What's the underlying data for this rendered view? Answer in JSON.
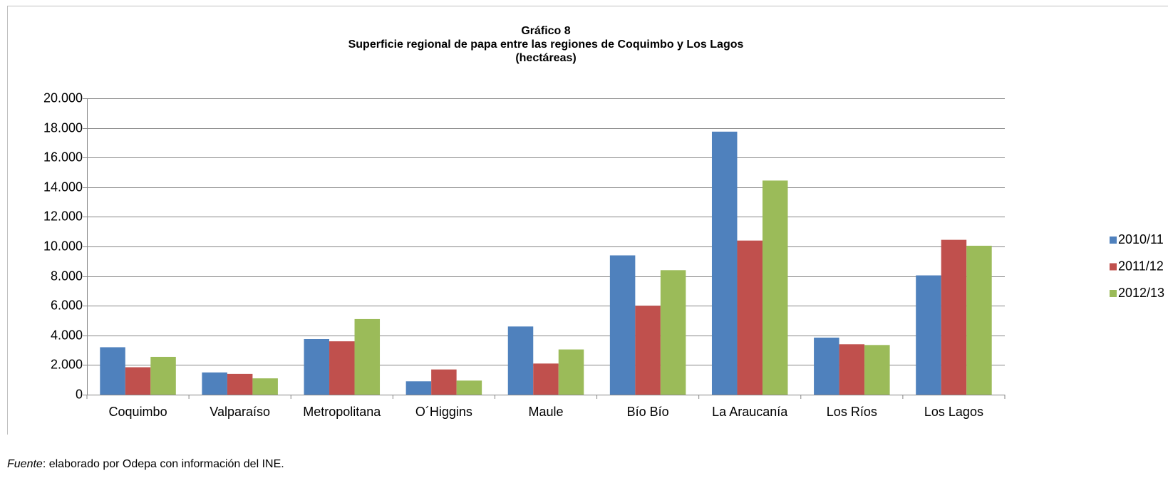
{
  "chart_data": {
    "type": "bar",
    "title": "Gráfico 8",
    "subtitle": "Superficie regional de papa entre las regiones de Coquimbo y Los Lagos",
    "unit_note": "(hectáreas)",
    "categories": [
      "Coquimbo",
      "Valparaíso",
      "Metropolitana",
      "O´Higgins",
      "Maule",
      "Bío Bío",
      "La Araucanía",
      "Los Ríos",
      "Los Lagos"
    ],
    "series": [
      {
        "name": "2010/11",
        "color": "#4f81bd",
        "values": [
          3200,
          1500,
          3750,
          900,
          4600,
          9400,
          17750,
          3850,
          8050
        ]
      },
      {
        "name": "2011/12",
        "color": "#c0504d",
        "values": [
          1850,
          1400,
          3600,
          1700,
          2100,
          6000,
          10400,
          3400,
          10450
        ]
      },
      {
        "name": "2012/13",
        "color": "#9bbb59",
        "values": [
          2550,
          1100,
          5100,
          950,
          3050,
          8400,
          14450,
          3350,
          10050
        ]
      }
    ],
    "ylim": [
      0,
      20000
    ],
    "yticks": [
      0,
      {
        "value": 2000,
        "label": "2.000"
      },
      {
        "value": 4000,
        "label": "4.000"
      },
      {
        "value": 6000,
        "label": "6.000"
      },
      {
        "value": 8000,
        "label": "8.000"
      },
      {
        "value": 10000,
        "label": "10.000"
      },
      {
        "value": 12000,
        "label": "12.000"
      },
      {
        "value": 14000,
        "label": "14.000"
      },
      {
        "value": 16000,
        "label": "16.000"
      },
      {
        "value": 18000,
        "label": "18.000"
      },
      {
        "value": 20000,
        "label": "20.000"
      }
    ],
    "grid": true,
    "legend": "right"
  },
  "source": {
    "label": "Fuente",
    "text": ": elaborado por Odepa con información del INE."
  }
}
